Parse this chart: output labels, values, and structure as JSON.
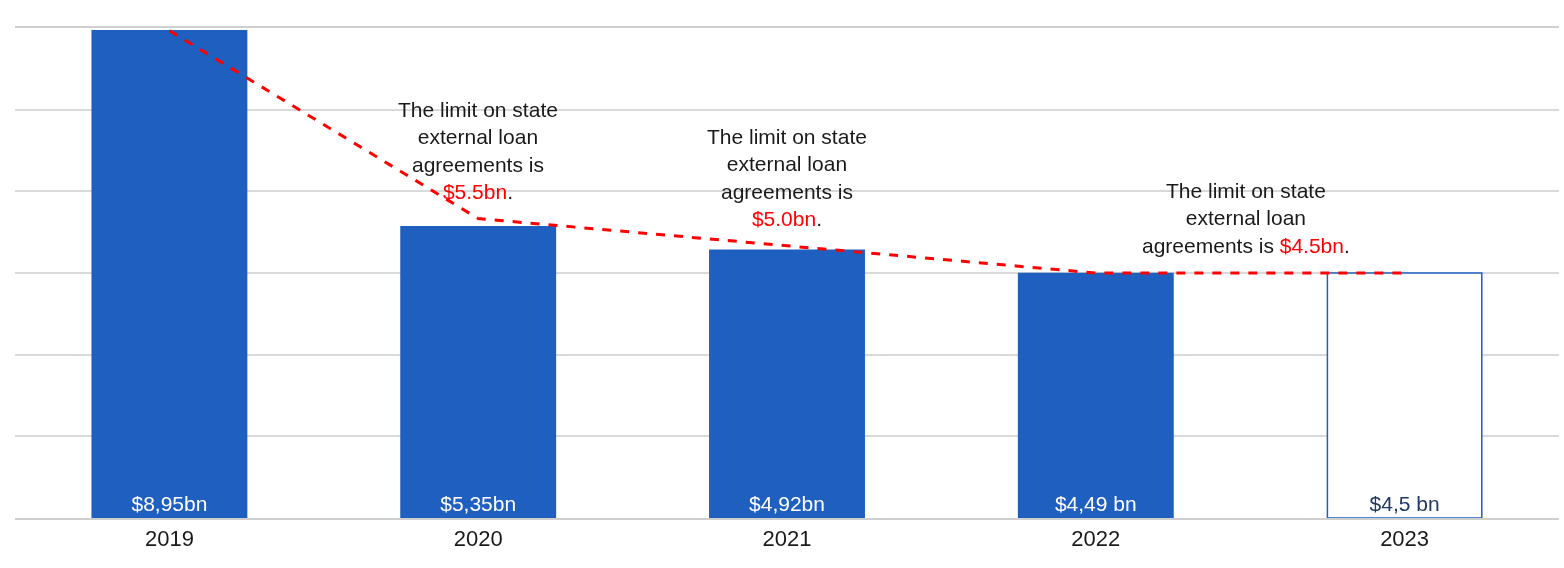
{
  "chart_data": {
    "type": "bar",
    "categories": [
      "2019",
      "2020",
      "2021",
      "2022",
      "2023"
    ],
    "series": [
      {
        "colors": [
          "#1f5fbf",
          "#1f5fbf",
          "#1f5fbf",
          "#1f5fbf",
          "#ffffff"
        ],
        "values": [
          8.95,
          5.35,
          4.92,
          4.49,
          4.5
        ],
        "value_labels": [
          "$8,95bn",
          "$5,35bn",
          "$4,92bn",
          "$4,49 bn",
          "$4,5 bn"
        ]
      },
      {
        "type": "line",
        "color": "#ff0000",
        "line_style": "dashed",
        "marker": "none",
        "values": [
          8.95,
          5.5,
          5.0,
          4.5,
          4.5
        ]
      }
    ],
    "annotations": [
      {
        "text": "The limit on state\nexternal loan\nagreements is\n$5.5bn.",
        "x": "2020",
        "y": 5.5
      },
      {
        "text": "The limit on state\nexternal loan\nagreements is\n$5.0bn.",
        "x": "2021",
        "y": 5.0
      },
      {
        "text": "The limit on state\nexternal loan\nagreements is $4.5bn.",
        "x": "2022",
        "y": 4.5
      }
    ],
    "ylim": [
      0,
      9
    ],
    "yticks": [
      {
        "value": 0,
        "label": null
      },
      {
        "value": 1.5,
        "label": null
      },
      {
        "value": 3,
        "label": null
      },
      {
        "value": 4.5,
        "label": null
      },
      {
        "value": 6,
        "label": null
      },
      {
        "value": 7.5,
        "label": null
      },
      {
        "value": 9,
        "label": null
      }
    ],
    "grid": "y",
    "tick_labels": "x"
  }
}
